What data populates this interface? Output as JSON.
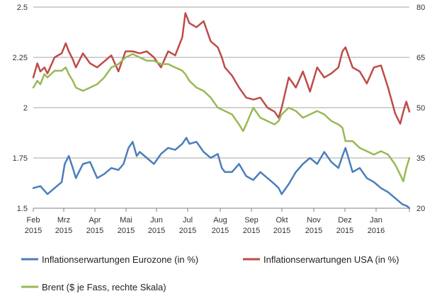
{
  "chart_data": {
    "type": "line",
    "title": "",
    "x_ticks": [
      {
        "month": "Feb",
        "year": "2015"
      },
      {
        "month": "Mrz",
        "year": "2015"
      },
      {
        "month": "Apr",
        "year": "2015"
      },
      {
        "month": "Mai",
        "year": "2015"
      },
      {
        "month": "Jun",
        "year": "2015"
      },
      {
        "month": "Jul",
        "year": "2015"
      },
      {
        "month": "Aug",
        "year": "2015"
      },
      {
        "month": "Sep",
        "year": "2015"
      },
      {
        "month": "Okt",
        "year": "2015"
      },
      {
        "month": "Nov",
        "year": "2015"
      },
      {
        "month": "Dez",
        "year": "2015"
      },
      {
        "month": "Jan",
        "year": "2016"
      }
    ],
    "y_left": {
      "min": 1.5,
      "max": 2.5,
      "ticks": [
        "1.5",
        "1.75",
        "2",
        "2.25",
        "2.5"
      ],
      "tick_values": [
        1.5,
        1.75,
        2,
        2.25,
        2.5
      ]
    },
    "y_right": {
      "min": 20,
      "max": 80,
      "ticks": [
        "20",
        "35",
        "50",
        "65",
        "80"
      ],
      "tick_values": [
        20,
        35,
        50,
        65,
        80
      ]
    },
    "grid": "horizontal",
    "legend_position": "bottom",
    "series": [
      {
        "name": "Inflationserwartungen Eurozone (in %)",
        "color": "#4a7ebb",
        "axis": "left",
        "x": [
          "2015-02-01",
          "2015-02-08",
          "2015-02-15",
          "2015-02-22",
          "2015-03-01",
          "2015-03-04",
          "2015-03-08",
          "2015-03-12",
          "2015-03-15",
          "2015-03-22",
          "2015-03-29",
          "2015-04-05",
          "2015-04-12",
          "2015-04-19",
          "2015-04-26",
          "2015-05-01",
          "2015-05-06",
          "2015-05-10",
          "2015-05-14",
          "2015-05-17",
          "2015-05-24",
          "2015-05-31",
          "2015-06-07",
          "2015-06-14",
          "2015-06-21",
          "2015-06-28",
          "2015-07-02",
          "2015-07-05",
          "2015-07-12",
          "2015-07-19",
          "2015-07-26",
          "2015-08-02",
          "2015-08-06",
          "2015-08-09",
          "2015-08-16",
          "2015-08-23",
          "2015-08-30",
          "2015-09-06",
          "2015-09-13",
          "2015-09-20",
          "2015-09-27",
          "2015-10-01",
          "2015-10-04",
          "2015-10-11",
          "2015-10-18",
          "2015-10-25",
          "2015-11-01",
          "2015-11-08",
          "2015-11-15",
          "2015-11-22",
          "2015-11-29",
          "2015-12-03",
          "2015-12-06",
          "2015-12-13",
          "2015-12-20",
          "2015-12-27",
          "2016-01-03",
          "2016-01-10",
          "2016-01-17",
          "2016-01-24",
          "2016-01-31",
          "2016-02-05",
          "2016-02-07"
        ],
        "values": [
          1.6,
          1.61,
          1.57,
          1.6,
          1.63,
          1.72,
          1.76,
          1.7,
          1.65,
          1.72,
          1.73,
          1.65,
          1.67,
          1.7,
          1.69,
          1.72,
          1.8,
          1.83,
          1.76,
          1.78,
          1.75,
          1.72,
          1.77,
          1.8,
          1.79,
          1.82,
          1.85,
          1.82,
          1.83,
          1.78,
          1.75,
          1.77,
          1.7,
          1.68,
          1.68,
          1.72,
          1.66,
          1.64,
          1.68,
          1.65,
          1.62,
          1.6,
          1.57,
          1.62,
          1.68,
          1.72,
          1.75,
          1.72,
          1.78,
          1.73,
          1.7,
          1.76,
          1.8,
          1.68,
          1.7,
          1.65,
          1.63,
          1.6,
          1.58,
          1.55,
          1.52,
          1.51,
          1.5
        ]
      },
      {
        "name": "Inflationserwartungen USA (in %)",
        "color": "#be4b48",
        "axis": "left",
        "x": [
          "2015-02-01",
          "2015-02-05",
          "2015-02-08",
          "2015-02-12",
          "2015-02-15",
          "2015-02-22",
          "2015-03-01",
          "2015-03-05",
          "2015-03-08",
          "2015-03-12",
          "2015-03-15",
          "2015-03-22",
          "2015-03-29",
          "2015-04-05",
          "2015-04-12",
          "2015-04-19",
          "2015-04-26",
          "2015-05-03",
          "2015-05-10",
          "2015-05-17",
          "2015-05-24",
          "2015-05-31",
          "2015-06-07",
          "2015-06-14",
          "2015-06-21",
          "2015-06-28",
          "2015-07-01",
          "2015-07-05",
          "2015-07-12",
          "2015-07-19",
          "2015-07-26",
          "2015-08-02",
          "2015-08-06",
          "2015-08-09",
          "2015-08-16",
          "2015-08-23",
          "2015-08-30",
          "2015-09-06",
          "2015-09-13",
          "2015-09-20",
          "2015-09-27",
          "2015-10-01",
          "2015-10-04",
          "2015-10-11",
          "2015-10-18",
          "2015-10-25",
          "2015-11-01",
          "2015-11-08",
          "2015-11-15",
          "2015-11-22",
          "2015-11-29",
          "2015-12-03",
          "2015-12-06",
          "2015-12-13",
          "2015-12-20",
          "2015-12-27",
          "2016-01-03",
          "2016-01-10",
          "2016-01-17",
          "2016-01-24",
          "2016-01-29",
          "2016-02-01",
          "2016-02-04",
          "2016-02-07"
        ],
        "values": [
          2.15,
          2.22,
          2.18,
          2.2,
          2.17,
          2.25,
          2.27,
          2.32,
          2.28,
          2.24,
          2.2,
          2.27,
          2.22,
          2.2,
          2.23,
          2.26,
          2.18,
          2.28,
          2.28,
          2.27,
          2.28,
          2.25,
          2.2,
          2.28,
          2.26,
          2.35,
          2.47,
          2.42,
          2.4,
          2.43,
          2.33,
          2.3,
          2.25,
          2.2,
          2.16,
          2.1,
          2.05,
          2.04,
          2.05,
          2.0,
          1.98,
          1.95,
          2.0,
          2.15,
          2.1,
          2.18,
          2.08,
          2.2,
          2.15,
          2.17,
          2.2,
          2.28,
          2.3,
          2.2,
          2.18,
          2.12,
          2.2,
          2.21,
          2.1,
          1.97,
          1.92,
          1.98,
          2.03,
          1.98
        ]
      },
      {
        "name": "Brent ($ je Fass, rechte Skala)",
        "color": "#98b954",
        "axis": "right",
        "x": [
          "2015-02-01",
          "2015-02-05",
          "2015-02-08",
          "2015-02-12",
          "2015-02-15",
          "2015-02-22",
          "2015-03-01",
          "2015-03-05",
          "2015-03-08",
          "2015-03-12",
          "2015-03-15",
          "2015-03-22",
          "2015-03-29",
          "2015-04-05",
          "2015-04-12",
          "2015-04-19",
          "2015-04-26",
          "2015-05-03",
          "2015-05-10",
          "2015-05-17",
          "2015-05-24",
          "2015-05-31",
          "2015-06-07",
          "2015-06-14",
          "2015-06-21",
          "2015-06-28",
          "2015-07-01",
          "2015-07-05",
          "2015-07-12",
          "2015-07-19",
          "2015-07-26",
          "2015-08-02",
          "2015-08-09",
          "2015-08-16",
          "2015-08-23",
          "2015-08-27",
          "2015-08-30",
          "2015-09-06",
          "2015-09-13",
          "2015-09-20",
          "2015-09-27",
          "2015-10-01",
          "2015-10-04",
          "2015-10-11",
          "2015-10-18",
          "2015-10-25",
          "2015-11-01",
          "2015-11-08",
          "2015-11-15",
          "2015-11-22",
          "2015-11-29",
          "2015-12-03",
          "2015-12-06",
          "2015-12-13",
          "2015-12-20",
          "2015-12-27",
          "2016-01-03",
          "2016-01-10",
          "2016-01-17",
          "2016-01-24",
          "2016-01-29",
          "2016-02-01",
          "2016-02-04",
          "2016-02-07"
        ],
        "values": [
          56,
          58,
          57,
          60,
          59,
          61,
          61,
          62,
          60,
          58,
          56,
          55,
          56,
          57,
          59,
          62,
          63,
          65,
          66,
          65,
          64,
          64,
          63,
          63,
          62,
          61,
          60,
          58,
          56,
          55,
          53,
          50,
          49,
          48,
          45,
          43,
          45,
          50,
          47,
          46,
          45,
          46,
          48,
          50,
          49,
          47,
          48,
          49,
          48,
          46,
          45,
          44,
          40,
          40,
          38,
          37,
          36,
          37,
          36,
          33,
          30,
          28,
          32,
          35
        ]
      }
    ]
  }
}
